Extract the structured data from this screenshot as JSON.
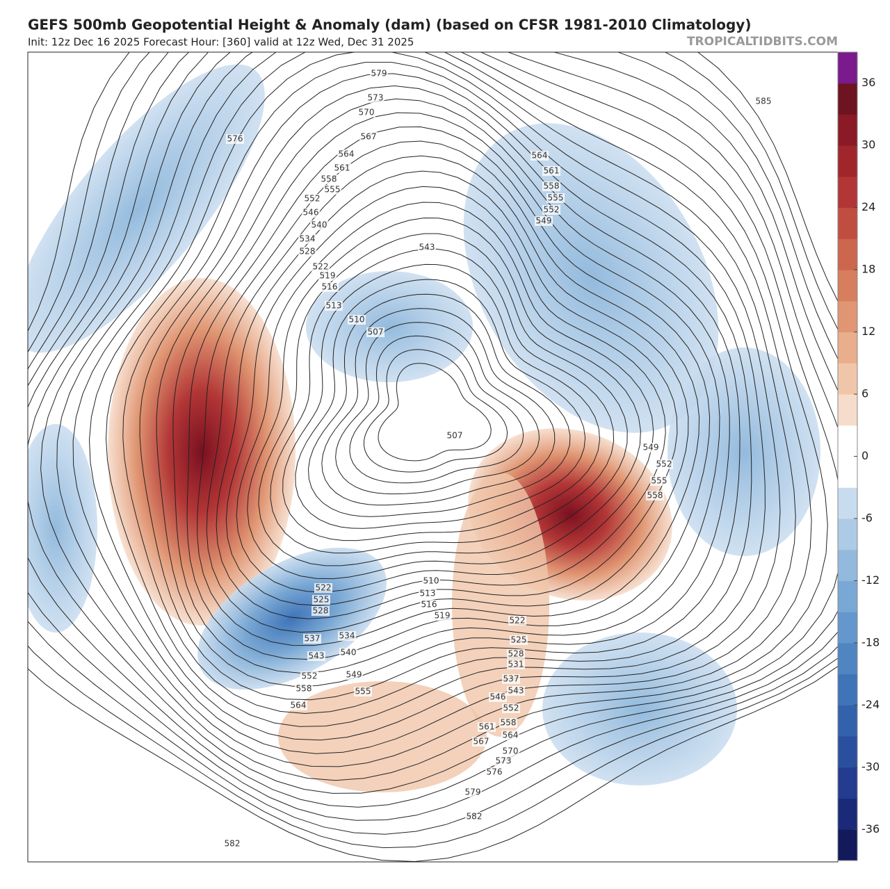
{
  "header": {
    "title": "GEFS 500mb Geopotential Height & Anomaly (dam) (based on CFSR 1981-2010 Climatology)",
    "subtitle": "Init: 12z Dec 16 2025   Forecast Hour: [360]   valid at 12z Wed, Dec 31 2025",
    "brand": "TROPICALTIDBITS.COM"
  },
  "colorbar": {
    "lim": [
      -39,
      39
    ],
    "step": 3,
    "colors": [
      "#121a5c",
      "#1b2a78",
      "#233c8f",
      "#2a4f9f",
      "#3362ad",
      "#3f74b8",
      "#4f86c2",
      "#6497cb",
      "#7aa8d4",
      "#93badd",
      "#adcbe6",
      "#c8dcef",
      "#ffffff",
      "#ffffff",
      "#f6dccb",
      "#f0c6aa",
      "#e9ae8c",
      "#e09673",
      "#d67e5e",
      "#cc664d",
      "#c04e40",
      "#b23636",
      "#a0262c",
      "#8a1a25",
      "#6e1320",
      "#7a1a8c"
    ],
    "ticks": [
      36,
      30,
      24,
      18,
      12,
      6,
      0,
      -6,
      -12,
      -18,
      -24,
      -30,
      -36
    ]
  },
  "map": {
    "contour_labels": [
      579,
      573,
      570,
      567,
      564,
      561,
      558,
      555,
      552,
      546,
      540,
      534,
      528,
      522,
      519,
      516,
      513,
      510,
      507,
      543,
      507,
      564,
      561,
      558,
      555,
      552,
      549,
      585,
      576,
      549,
      552,
      555,
      558,
      522,
      525,
      528,
      537,
      534,
      540,
      543,
      549,
      552,
      555,
      558,
      564,
      510,
      513,
      516,
      519,
      522,
      525,
      528,
      531,
      537,
      543,
      546,
      552,
      558,
      561,
      564,
      567,
      570,
      573,
      576,
      579,
      582,
      582
    ]
  }
}
